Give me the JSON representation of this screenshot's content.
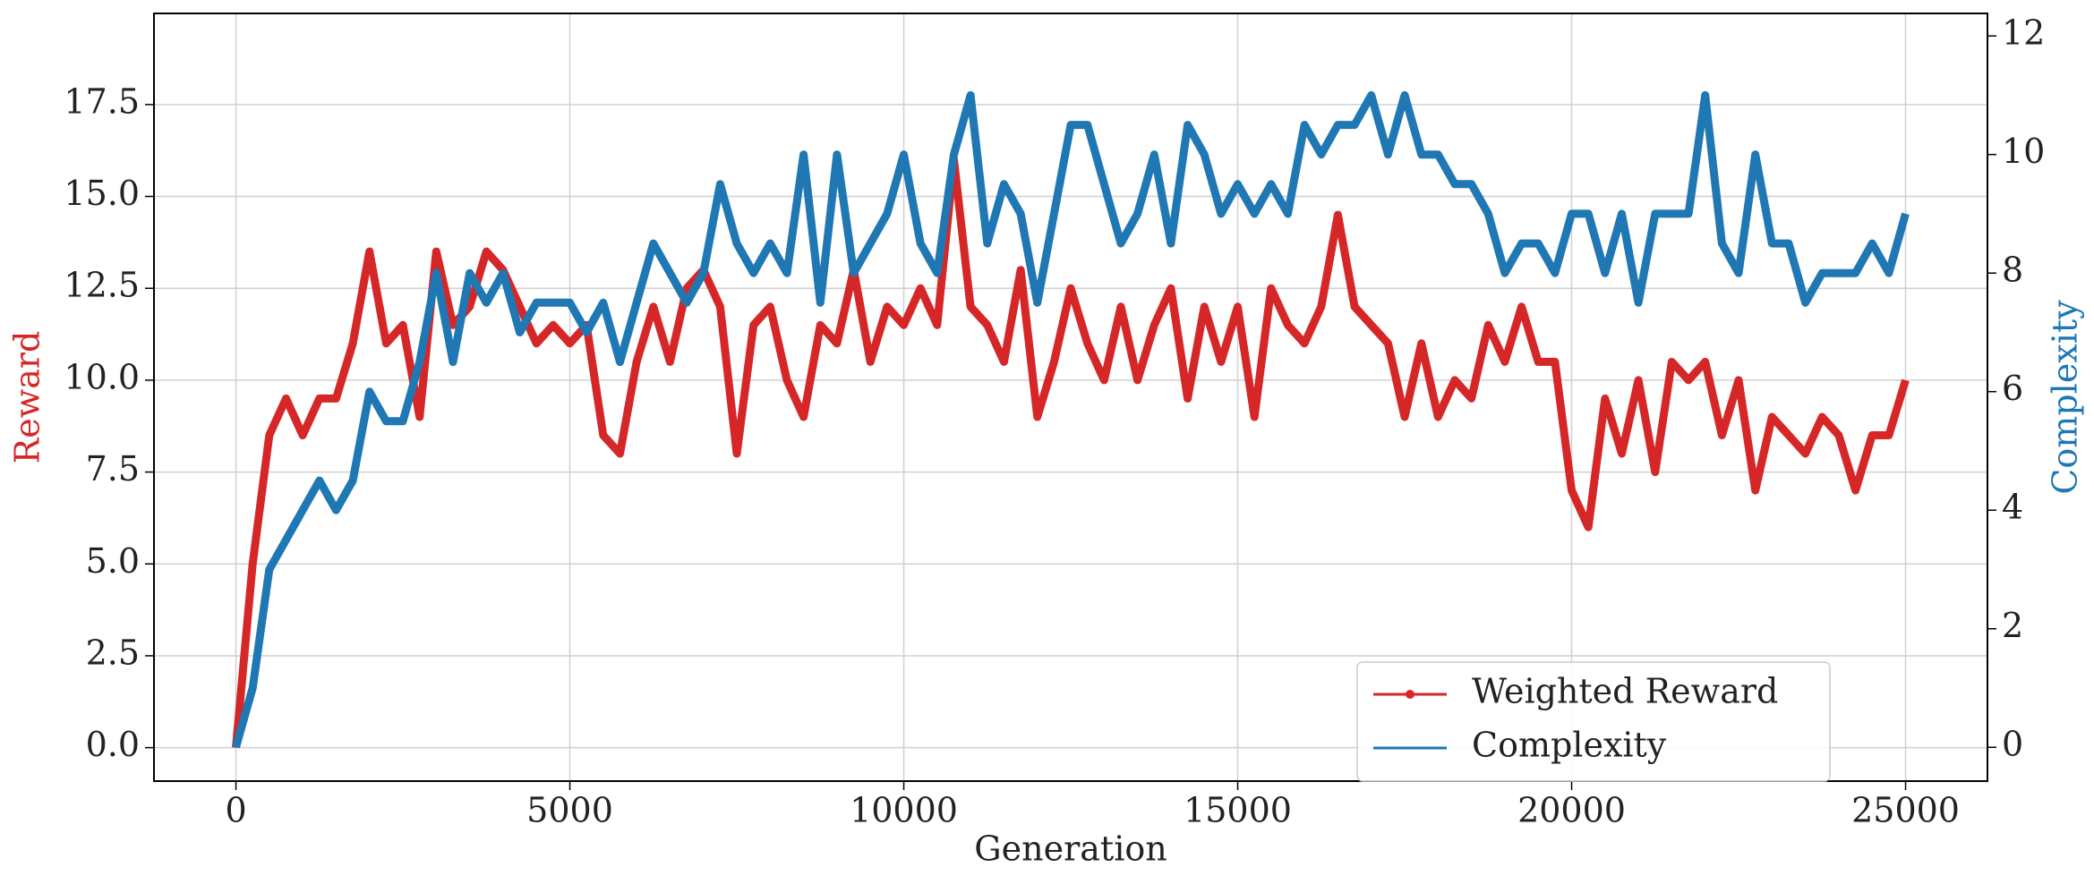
{
  "chart_data": {
    "type": "line",
    "xlabel": "Generation",
    "ylabel": "Reward",
    "y2label": "Complexity",
    "x": [
      0,
      250,
      500,
      750,
      1000,
      1250,
      1500,
      1750,
      2000,
      2250,
      2500,
      2750,
      3000,
      3250,
      3500,
      3750,
      4000,
      4250,
      4500,
      4750,
      5000,
      5250,
      5500,
      5750,
      6000,
      6250,
      6500,
      6750,
      7000,
      7250,
      7500,
      7750,
      8000,
      8250,
      8500,
      8750,
      9000,
      9250,
      9500,
      9750,
      10000,
      10250,
      10500,
      10750,
      11000,
      11250,
      11500,
      11750,
      12000,
      12250,
      12500,
      12750,
      13000,
      13250,
      13500,
      13750,
      14000,
      14250,
      14500,
      14750,
      15000,
      15250,
      15500,
      15750,
      16000,
      16250,
      16500,
      16750,
      17000,
      17250,
      17500,
      17750,
      18000,
      18250,
      18500,
      18750,
      19000,
      19250,
      19500,
      19750,
      20000,
      20250,
      20500,
      20750,
      21000,
      21250,
      21500,
      21750,
      22000,
      22250,
      22500,
      22750,
      23000,
      23250,
      23500,
      23750,
      24000,
      24250,
      24500,
      24750,
      25000
    ],
    "series": [
      {
        "name": "Weighted Reward",
        "color": "#d62728",
        "marker": true,
        "values": [
          0,
          5,
          8.5,
          9.5,
          8.5,
          9.5,
          9.5,
          11,
          13.5,
          11,
          11.5,
          9,
          13.5,
          11.5,
          12,
          13.5,
          13,
          12,
          11,
          11.5,
          11,
          11.5,
          8.5,
          8,
          10.5,
          12,
          10.5,
          12.5,
          13,
          12,
          8,
          11.5,
          12,
          10,
          9,
          11.5,
          11,
          13,
          10.5,
          12,
          11.5,
          12.5,
          11.5,
          16,
          12,
          11.5,
          10.5,
          13,
          9,
          10.5,
          12.5,
          11,
          10,
          12,
          10,
          11.5,
          12.5,
          9.5,
          12,
          10.5,
          12,
          9,
          12.5,
          11.5,
          11,
          12,
          14.5,
          12,
          11.5,
          11,
          9,
          11,
          9,
          10,
          9.5,
          11.5,
          10.5,
          12,
          10.5,
          10.5,
          7,
          6,
          9.5,
          8,
          10,
          7.5,
          10.5,
          10,
          10.5,
          8.5,
          10,
          7,
          9,
          8.5,
          8,
          9,
          8.5,
          7,
          8.5,
          8.5,
          10
        ]
      },
      {
        "name": "Complexity",
        "color": "#1f77b4",
        "axis": "y2",
        "values": [
          0,
          1,
          3,
          3.5,
          4,
          4.5,
          4,
          4.5,
          6,
          5.5,
          5.5,
          6.5,
          8,
          6.5,
          8,
          7.5,
          8,
          7,
          7.5,
          7.5,
          7.5,
          7,
          7.5,
          6.5,
          7.5,
          8.5,
          8,
          7.5,
          8,
          9.5,
          8.5,
          8,
          8.5,
          8,
          10,
          7.5,
          10,
          8,
          8.5,
          9,
          10,
          8.5,
          8,
          10,
          11,
          8.5,
          9.5,
          9,
          7.5,
          9,
          10.5,
          10.5,
          9.5,
          8.5,
          9,
          10,
          8.5,
          10.5,
          10,
          9,
          9.5,
          9,
          9.5,
          9,
          10.5,
          10,
          10.5,
          10.5,
          11,
          10,
          11,
          10,
          10,
          9.5,
          9.5,
          9,
          8,
          8.5,
          8.5,
          8,
          9,
          9,
          8,
          9,
          7.5,
          9,
          9,
          9,
          11,
          8.5,
          8,
          10,
          8.5,
          8.5,
          7.5,
          8,
          8,
          8,
          8.5,
          8,
          9
        ]
      }
    ],
    "xlim": [
      -1227,
      26226
    ],
    "xticks": [
      0,
      5000,
      10000,
      15000,
      20000,
      25000
    ],
    "ylim": [
      -0.91,
      19.98
    ],
    "yticks": [
      {
        "value": 0,
        "label": "0.0"
      },
      2.5,
      {
        "value": 5,
        "label": "5.0"
      },
      7.5,
      {
        "value": 10,
        "label": "10.0"
      },
      12.5,
      {
        "value": 15,
        "label": "15.0"
      },
      17.5
    ],
    "y2lim": [
      -0.57,
      12.38
    ],
    "y2ticks": [
      0,
      2,
      4,
      6,
      8,
      10,
      12
    ],
    "grid": true,
    "legend": "lower right"
  }
}
